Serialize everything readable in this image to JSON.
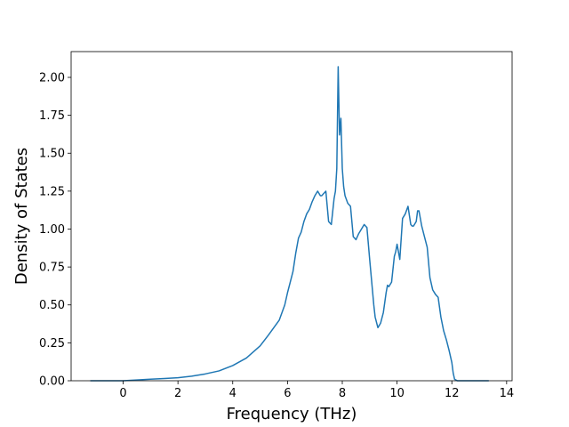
{
  "chart_data": {
    "type": "line",
    "title": "",
    "xlabel": "Frequency (THz)",
    "ylabel": "Density of States",
    "xlim": [
      -1.9,
      14.2
    ],
    "ylim": [
      0.0,
      2.17
    ],
    "xticks": [
      0,
      2,
      4,
      6,
      8,
      10,
      12,
      14
    ],
    "yticks": [
      0.0,
      0.25,
      0.5,
      0.75,
      1.0,
      1.25,
      1.5,
      1.75,
      2.0
    ],
    "xtick_labels": [
      "0",
      "2",
      "4",
      "6",
      "8",
      "10",
      "12",
      "14"
    ],
    "ytick_labels": [
      "0.00",
      "0.25",
      "0.50",
      "0.75",
      "1.00",
      "1.25",
      "1.50",
      "1.75",
      "2.00"
    ],
    "grid": false,
    "series": [
      {
        "color": "#1f77b4",
        "x": [
          -1.2,
          -0.5,
          0.0,
          0.5,
          1.0,
          1.5,
          2.0,
          2.5,
          3.0,
          3.5,
          4.0,
          4.5,
          5.0,
          5.3,
          5.5,
          5.7,
          5.9,
          6.0,
          6.1,
          6.2,
          6.3,
          6.4,
          6.5,
          6.6,
          6.7,
          6.8,
          6.9,
          7.0,
          7.1,
          7.2,
          7.25,
          7.3,
          7.35,
          7.4,
          7.5,
          7.6,
          7.7,
          7.75,
          7.8,
          7.85,
          7.9,
          7.95,
          8.0,
          8.05,
          8.1,
          8.2,
          8.3,
          8.4,
          8.5,
          8.6,
          8.7,
          8.8,
          8.85,
          8.9,
          9.0,
          9.1,
          9.15,
          9.2,
          9.3,
          9.4,
          9.5,
          9.6,
          9.65,
          9.7,
          9.8,
          9.9,
          9.95,
          10.0,
          10.1,
          10.2,
          10.3,
          10.4,
          10.5,
          10.55,
          10.6,
          10.7,
          10.75,
          10.8,
          10.9,
          11.0,
          11.1,
          11.2,
          11.3,
          11.4,
          11.5,
          11.6,
          11.7,
          11.8,
          11.9,
          12.0,
          12.05,
          12.1,
          12.2,
          12.5,
          13.0,
          13.35
        ],
        "y": [
          0.0,
          0.0,
          0.0,
          0.005,
          0.01,
          0.015,
          0.02,
          0.03,
          0.045,
          0.065,
          0.1,
          0.15,
          0.23,
          0.3,
          0.35,
          0.4,
          0.5,
          0.58,
          0.65,
          0.72,
          0.84,
          0.94,
          0.98,
          1.05,
          1.1,
          1.13,
          1.18,
          1.22,
          1.25,
          1.22,
          1.22,
          1.23,
          1.24,
          1.25,
          1.05,
          1.03,
          1.2,
          1.25,
          1.4,
          2.07,
          1.62,
          1.73,
          1.4,
          1.28,
          1.22,
          1.17,
          1.15,
          0.95,
          0.93,
          0.97,
          1.0,
          1.03,
          1.02,
          1.01,
          0.8,
          0.6,
          0.5,
          0.42,
          0.35,
          0.38,
          0.45,
          0.58,
          0.63,
          0.62,
          0.65,
          0.82,
          0.85,
          0.9,
          0.8,
          1.07,
          1.1,
          1.15,
          1.03,
          1.02,
          1.02,
          1.05,
          1.12,
          1.12,
          1.02,
          0.95,
          0.88,
          0.68,
          0.6,
          0.57,
          0.55,
          0.42,
          0.33,
          0.27,
          0.2,
          0.12,
          0.05,
          0.01,
          0.0,
          0.0,
          0.0,
          0.0
        ]
      }
    ]
  }
}
